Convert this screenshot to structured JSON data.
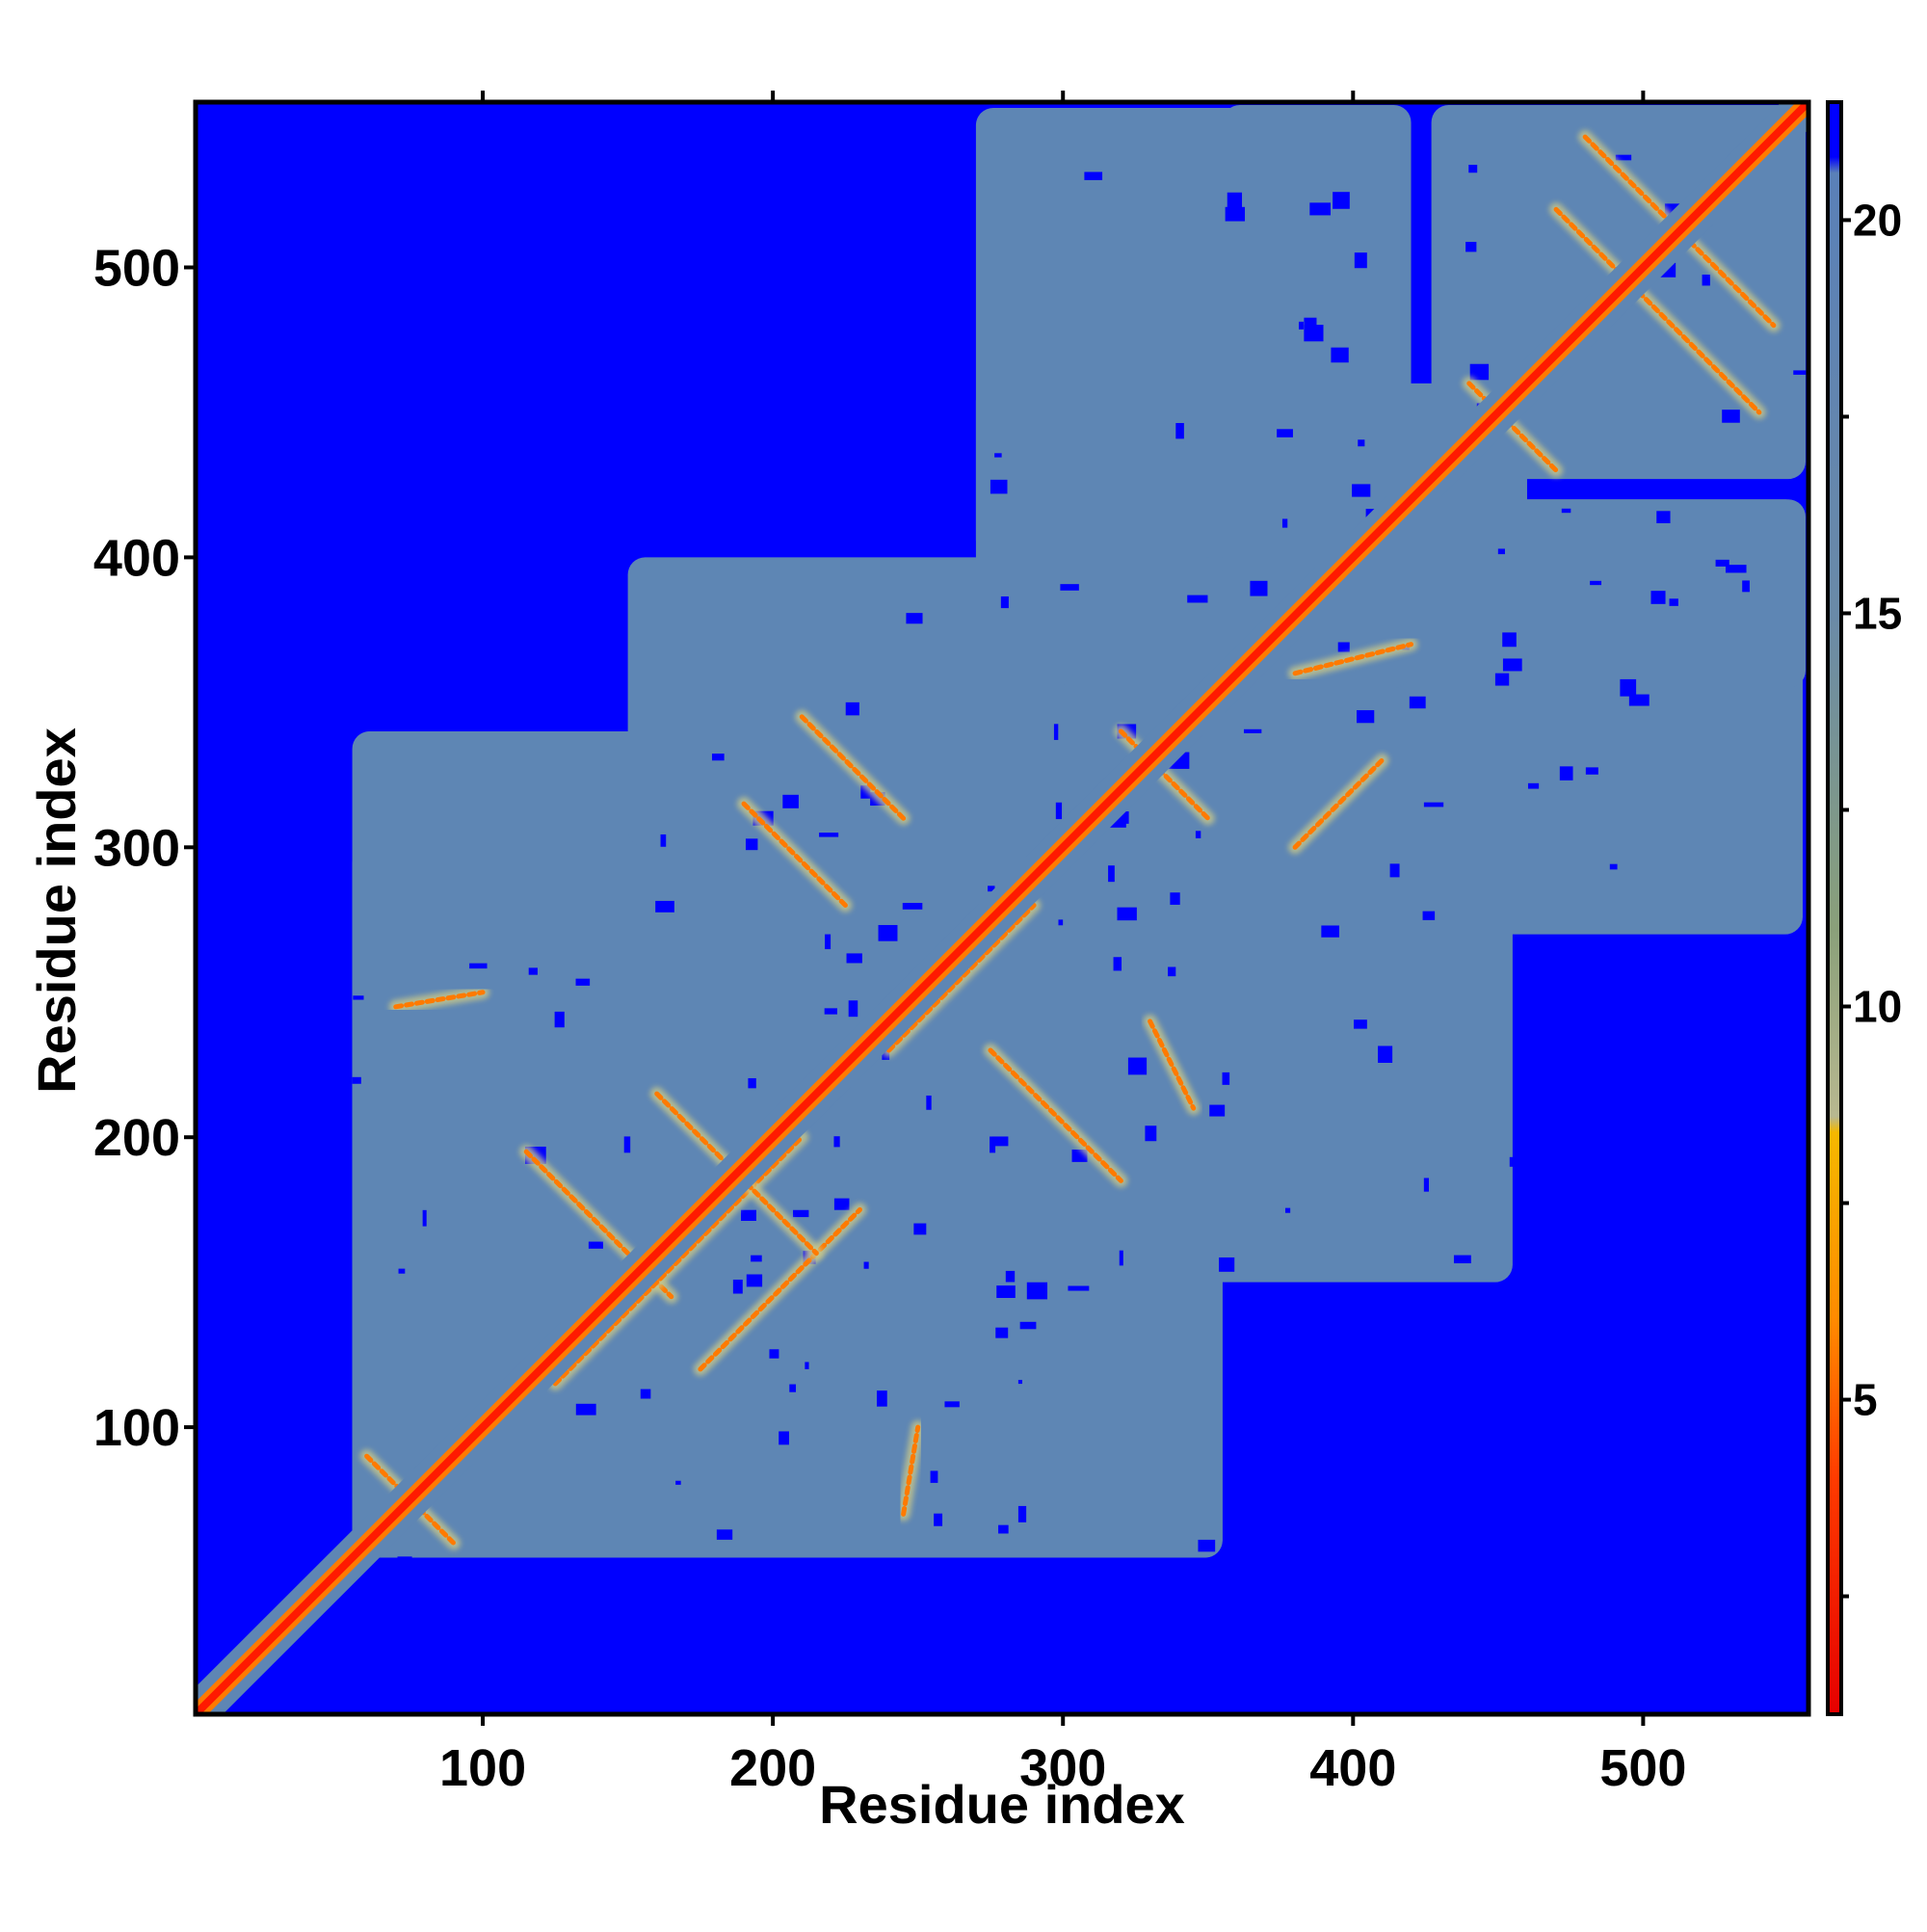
{
  "chart_data": {
    "type": "heatmap",
    "title": "",
    "xlabel": "Residue index",
    "ylabel": "Residue index",
    "xlim": [
      1,
      557
    ],
    "ylim": [
      1,
      557
    ],
    "x_ticks": [
      100,
      200,
      300,
      400,
      500
    ],
    "y_ticks": [
      100,
      200,
      300,
      400,
      500
    ],
    "colorbar": {
      "ticks": [
        5,
        10,
        15,
        20
      ],
      "range": [
        1,
        21.5
      ],
      "color_stops": [
        {
          "value": 1,
          "color": "#e60000"
        },
        {
          "value": 4,
          "color": "#ff3b00"
        },
        {
          "value": 6,
          "color": "#ff8a00"
        },
        {
          "value": 8.4,
          "color": "#f5b800"
        },
        {
          "value": 8.6,
          "color": "#b8b890"
        },
        {
          "value": 11,
          "color": "#8aa07a"
        },
        {
          "value": 15,
          "color": "#6a8aa8"
        },
        {
          "value": 20.6,
          "color": "#5a80b8"
        },
        {
          "value": 20.8,
          "color": "#0000ff"
        },
        {
          "value": 21.5,
          "color": "#0000ff"
        }
      ]
    },
    "colors": {
      "background": "#0000ff",
      "contact_region": "#5e86b4",
      "contact_mid": "#c8c88a",
      "contact_close": "#ff7a00",
      "diagonal": "#ff1a00"
    },
    "contact_blocks": [
      {
        "x": [
          55,
          235
        ],
        "y": [
          55,
          235
        ]
      },
      {
        "x": [
          55,
          300
        ],
        "y": [
          55,
          260
        ]
      },
      {
        "x": [
          55,
          260
        ],
        "y": [
          55,
          300
        ]
      },
      {
        "x": [
          195,
          355
        ],
        "y": [
          195,
          355
        ]
      },
      {
        "x": [
          55,
          355
        ],
        "y": [
          150,
          300
        ]
      },
      {
        "x": [
          150,
          355
        ],
        "y": [
          55,
          300
        ]
      },
      {
        "x": [
          235,
          355
        ],
        "y": [
          55,
          250
        ]
      },
      {
        "x": [
          55,
          250
        ],
        "y": [
          235,
          340
        ]
      },
      {
        "x": [
          270,
          460
        ],
        "y": [
          270,
          460
        ]
      },
      {
        "x": [
          150,
          355
        ],
        "y": [
          300,
          400
        ]
      },
      {
        "x": [
          300,
          455
        ],
        "y": [
          150,
          360
        ]
      },
      {
        "x": [
          270,
          420
        ],
        "y": [
          400,
          555
        ]
      },
      {
        "x": [
          400,
          555
        ],
        "y": [
          270,
          420
        ]
      },
      {
        "x": [
          427,
          556
        ],
        "y": [
          427,
          556
        ]
      },
      {
        "x": [
          355,
          556
        ],
        "y": [
          355,
          420
        ]
      },
      {
        "x": [
          355,
          420
        ],
        "y": [
          355,
          556
        ]
      }
    ],
    "diagonal_segments": [
      {
        "x": [
          1,
          557
        ],
        "y": [
          1,
          557
        ]
      }
    ],
    "off_diagonal_contacts": [
      {
        "x1": 115,
        "y1": 195,
        "x2": 165,
        "y2": 145
      },
      {
        "x1": 125,
        "y1": 115,
        "x2": 210,
        "y2": 200
      },
      {
        "x1": 175,
        "y1": 120,
        "x2": 230,
        "y2": 175
      },
      {
        "x1": 160,
        "y1": 215,
        "x2": 215,
        "y2": 160
      },
      {
        "x1": 190,
        "y1": 315,
        "x2": 225,
        "y2": 280
      },
      {
        "x1": 210,
        "y1": 345,
        "x2": 245,
        "y2": 310
      },
      {
        "x1": 240,
        "y1": 230,
        "x2": 290,
        "y2": 280
      },
      {
        "x1": 275,
        "y1": 230,
        "x2": 320,
        "y2": 185
      },
      {
        "x1": 320,
        "y1": 340,
        "x2": 350,
        "y2": 310
      },
      {
        "x1": 330,
        "y1": 240,
        "x2": 345,
        "y2": 210
      },
      {
        "x1": 380,
        "y1": 300,
        "x2": 410,
        "y2": 330
      },
      {
        "x1": 380,
        "y1": 360,
        "x2": 420,
        "y2": 370
      },
      {
        "x1": 440,
        "y1": 460,
        "x2": 470,
        "y2": 430
      },
      {
        "x1": 470,
        "y1": 520,
        "x2": 540,
        "y2": 450
      },
      {
        "x1": 480,
        "y1": 545,
        "x2": 545,
        "y2": 480
      },
      {
        "x1": 60,
        "y1": 90,
        "x2": 90,
        "y2": 60
      },
      {
        "x1": 70,
        "y1": 245,
        "x2": 100,
        "y2": 250
      },
      {
        "x1": 245,
        "y1": 70,
        "x2": 250,
        "y2": 100
      }
    ]
  }
}
